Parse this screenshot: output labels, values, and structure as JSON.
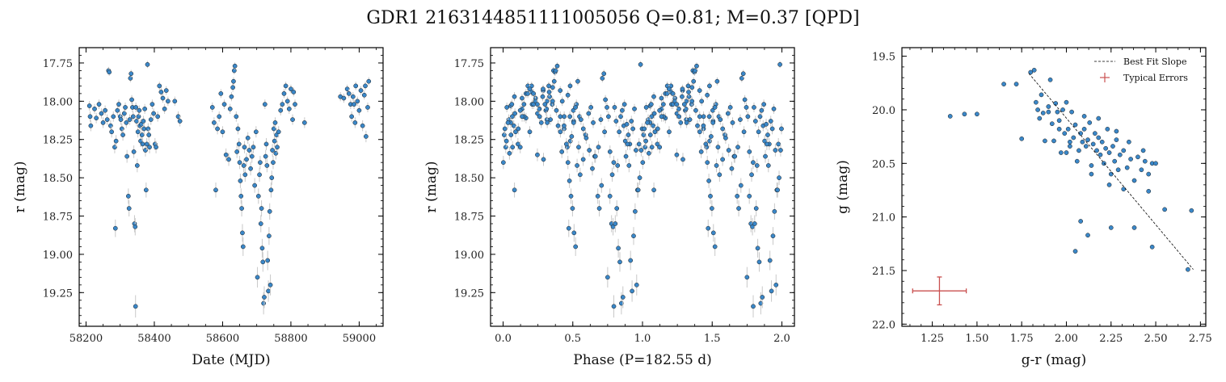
{
  "page": {
    "title": "GDR1 2163144851111005056  Q=0.81; M=0.37 [QPD]"
  },
  "colors": {
    "point_fill": "#3a87c8",
    "point_edge": "#1a1a1a",
    "error_bar": "#c8c8c8",
    "typical_error": "#c9504f",
    "fit_line": "#000000"
  },
  "chart_data": [
    {
      "type": "scatter",
      "xlabel": "Date (MJD)",
      "ylabel": "r (mag)",
      "xlim": [
        58180,
        59070
      ],
      "ylim": [
        19.47,
        17.65
      ],
      "y_inverted": true,
      "xticks": [
        58200,
        58400,
        58600,
        58800,
        59000
      ],
      "xtick_labels": [
        "58200",
        "58400",
        "58600",
        "58800",
        "59000"
      ],
      "yticks": [
        17.75,
        18.0,
        18.25,
        18.5,
        18.75,
        19.0,
        19.25
      ],
      "ytick_labels": [
        "17.75",
        "18.00",
        "18.25",
        "18.50",
        "18.75",
        "19.00",
        "19.25"
      ],
      "points": [
        [
          58210,
          18.03
        ],
        [
          58212,
          18.1
        ],
        [
          58214,
          18.16
        ],
        [
          58225,
          18.05
        ],
        [
          58230,
          18.11
        ],
        [
          58238,
          18.02
        ],
        [
          58245,
          18.08
        ],
        [
          58250,
          18.14
        ],
        [
          58256,
          18.06
        ],
        [
          58262,
          18.12
        ],
        [
          58266,
          17.8
        ],
        [
          58268,
          17.81
        ],
        [
          58272,
          18.16
        ],
        [
          58275,
          18.2
        ],
        [
          58280,
          18.1
        ],
        [
          58284,
          18.3
        ],
        [
          58286,
          18.83
        ],
        [
          58288,
          18.26
        ],
        [
          58292,
          18.06
        ],
        [
          58296,
          18.02
        ],
        [
          58300,
          18.1
        ],
        [
          58302,
          18.12
        ],
        [
          58305,
          18.18
        ],
        [
          58308,
          18.22
        ],
        [
          58312,
          18.08
        ],
        [
          58315,
          18.04
        ],
        [
          58318,
          18.14
        ],
        [
          58320,
          18.36
        ],
        [
          58324,
          18.62
        ],
        [
          58326,
          18.7
        ],
        [
          58328,
          18.12
        ],
        [
          58330,
          17.85
        ],
        [
          58332,
          17.82
        ],
        [
          58334,
          17.99
        ],
        [
          58336,
          18.04
        ],
        [
          58338,
          18.1
        ],
        [
          58340,
          18.33
        ],
        [
          58342,
          18.8
        ],
        [
          58344,
          18.82
        ],
        [
          58345,
          19.34
        ],
        [
          58346,
          18.04
        ],
        [
          58348,
          18.13
        ],
        [
          58350,
          18.42
        ],
        [
          58352,
          18.2
        ],
        [
          58354,
          18.1
        ],
        [
          58356,
          18.06
        ],
        [
          58358,
          18.16
        ],
        [
          58360,
          18.26
        ],
        [
          58362,
          18.15
        ],
        [
          58364,
          18.22
        ],
        [
          58366,
          18.28
        ],
        [
          58368,
          18.13
        ],
        [
          58370,
          18.18
        ],
        [
          58372,
          18.05
        ],
        [
          58374,
          18.32
        ],
        [
          58376,
          18.58
        ],
        [
          58378,
          18.28
        ],
        [
          58380,
          17.76
        ],
        [
          58382,
          18.18
        ],
        [
          58384,
          18.22
        ],
        [
          58386,
          18.3
        ],
        [
          58390,
          18.12
        ],
        [
          58394,
          18.02
        ],
        [
          58398,
          18.08
        ],
        [
          58402,
          18.28
        ],
        [
          58405,
          18.3
        ],
        [
          58410,
          18.1
        ],
        [
          58415,
          17.9
        ],
        [
          58420,
          17.94
        ],
        [
          58425,
          17.98
        ],
        [
          58430,
          18.05
        ],
        [
          58435,
          17.93
        ],
        [
          58440,
          18.0
        ],
        [
          58460,
          18.0
        ],
        [
          58470,
          18.1
        ],
        [
          58475,
          18.13
        ],
        [
          58570,
          18.04
        ],
        [
          58575,
          18.14
        ],
        [
          58580,
          18.58
        ],
        [
          58585,
          18.18
        ],
        [
          58590,
          18.1
        ],
        [
          58595,
          17.95
        ],
        [
          58600,
          18.2
        ],
        [
          58605,
          18.02
        ],
        [
          58610,
          18.35
        ],
        [
          58618,
          18.38
        ],
        [
          58622,
          18.05
        ],
        [
          58626,
          17.97
        ],
        [
          58630,
          17.91
        ],
        [
          58632,
          17.87
        ],
        [
          58634,
          17.8
        ],
        [
          58636,
          17.77
        ],
        [
          58640,
          18.1
        ],
        [
          58642,
          18.33
        ],
        [
          58645,
          18.18
        ],
        [
          58648,
          18.28
        ],
        [
          58650,
          18.4
        ],
        [
          58652,
          18.52
        ],
        [
          58654,
          18.62
        ],
        [
          58656,
          18.7
        ],
        [
          58658,
          18.86
        ],
        [
          58660,
          18.95
        ],
        [
          58662,
          18.42
        ],
        [
          58664,
          18.3
        ],
        [
          58666,
          18.48
        ],
        [
          58670,
          18.38
        ],
        [
          58674,
          18.24
        ],
        [
          58678,
          18.32
        ],
        [
          58682,
          18.44
        ],
        [
          58686,
          18.36
        ],
        [
          58690,
          18.3
        ],
        [
          58694,
          18.55
        ],
        [
          58698,
          18.2
        ],
        [
          58702,
          19.15
        ],
        [
          58705,
          18.62
        ],
        [
          58708,
          18.48
        ],
        [
          58710,
          18.4
        ],
        [
          58712,
          18.8
        ],
        [
          58714,
          18.7
        ],
        [
          58716,
          18.96
        ],
        [
          58718,
          19.05
        ],
        [
          58720,
          19.32
        ],
        [
          58722,
          19.28
        ],
        [
          58724,
          18.02
        ],
        [
          58726,
          18.36
        ],
        [
          58728,
          18.28
        ],
        [
          58730,
          18.42
        ],
        [
          58732,
          19.04
        ],
        [
          58734,
          19.24
        ],
        [
          58736,
          18.88
        ],
        [
          58738,
          18.72
        ],
        [
          58740,
          19.2
        ],
        [
          58742,
          18.58
        ],
        [
          58744,
          18.5
        ],
        [
          58746,
          18.32
        ],
        [
          58748,
          18.4
        ],
        [
          58750,
          18.18
        ],
        [
          58752,
          18.26
        ],
        [
          58754,
          18.14
        ],
        [
          58756,
          18.34
        ],
        [
          58758,
          18.22
        ],
        [
          58760,
          18.3
        ],
        [
          58764,
          18.2
        ],
        [
          58770,
          18.06
        ],
        [
          58775,
          18.02
        ],
        [
          58780,
          17.95
        ],
        [
          58785,
          17.9
        ],
        [
          58790,
          18.0
        ],
        [
          58795,
          18.05
        ],
        [
          58800,
          17.92
        ],
        [
          58805,
          18.12
        ],
        [
          58808,
          17.94
        ],
        [
          58812,
          18.02
        ],
        [
          58840,
          18.14
        ],
        [
          58945,
          17.97
        ],
        [
          58955,
          17.98
        ],
        [
          58965,
          17.92
        ],
        [
          58970,
          17.95
        ],
        [
          58975,
          18.02
        ],
        [
          58978,
          18.1
        ],
        [
          58982,
          17.97
        ],
        [
          58985,
          18.02
        ],
        [
          58988,
          18.14
        ],
        [
          58990,
          17.9
        ],
        [
          58995,
          18.0
        ],
        [
          59000,
          18.06
        ],
        [
          59005,
          17.93
        ],
        [
          59010,
          18.16
        ],
        [
          59015,
          17.96
        ],
        [
          59018,
          17.9
        ],
        [
          59020,
          18.23
        ],
        [
          59025,
          18.04
        ],
        [
          59028,
          17.87
        ]
      ]
    },
    {
      "type": "scatter",
      "xlabel": "Phase (P=182.55 d)",
      "ylabel": "r (mag)",
      "xlim": [
        -0.09,
        2.09
      ],
      "ylim": [
        19.47,
        17.65
      ],
      "y_inverted": true,
      "xticks": [
        0.0,
        0.5,
        1.0,
        1.5,
        2.0
      ],
      "xtick_labels": [
        "0.0",
        "0.5",
        "1.0",
        "1.5",
        "2.0"
      ],
      "yticks": [
        17.75,
        18.0,
        18.25,
        18.5,
        18.75,
        19.0,
        19.25
      ],
      "ytick_labels": [
        "17.75",
        "18.00",
        "18.25",
        "18.50",
        "18.75",
        "19.00",
        "19.25"
      ],
      "period_days": 182.55,
      "phase_reference": 58200,
      "derived_from_panel": 0
    },
    {
      "type": "scatter",
      "xlabel": "g-r (mag)",
      "ylabel": "g (mag)",
      "xlim": [
        1.08,
        2.78
      ],
      "ylim": [
        22.02,
        19.42
      ],
      "y_inverted": true,
      "xticks": [
        1.25,
        1.5,
        1.75,
        2.0,
        2.25,
        2.5,
        2.75
      ],
      "xtick_labels": [
        "1.25",
        "1.50",
        "1.75",
        "2.00",
        "2.25",
        "2.50",
        "2.75"
      ],
      "yticks": [
        19.5,
        20.0,
        20.5,
        21.0,
        21.5,
        22.0
      ],
      "ytick_labels": [
        "19.5",
        "20.0",
        "20.5",
        "21.0",
        "21.5",
        "22.0"
      ],
      "legend": {
        "placement": "top-right",
        "entries": [
          "Best Fit Slope",
          "Typical Errors"
        ]
      },
      "fit_line": {
        "x": [
          1.79,
          2.71
        ],
        "y": [
          19.66,
          21.49
        ]
      },
      "typical_error": {
        "x": 1.29,
        "y": 21.69,
        "xerr": 0.15,
        "yerr": 0.13
      },
      "points": [
        [
          1.35,
          20.06
        ],
        [
          1.43,
          20.04
        ],
        [
          1.5,
          20.04
        ],
        [
          1.65,
          19.76
        ],
        [
          1.72,
          19.76
        ],
        [
          1.75,
          20.27
        ],
        [
          1.8,
          19.65
        ],
        [
          1.82,
          19.63
        ],
        [
          1.83,
          19.93
        ],
        [
          1.84,
          20.0
        ],
        [
          1.85,
          20.08
        ],
        [
          1.86,
          19.86
        ],
        [
          1.87,
          20.03
        ],
        [
          1.88,
          20.29
        ],
        [
          1.9,
          19.97
        ],
        [
          1.91,
          19.72
        ],
        [
          1.92,
          20.13
        ],
        [
          1.93,
          20.29
        ],
        [
          1.94,
          19.94
        ],
        [
          1.95,
          20.02
        ],
        [
          1.96,
          20.1
        ],
        [
          1.97,
          20.4
        ],
        [
          1.98,
          20.0
        ],
        [
          1.99,
          20.22
        ],
        [
          2.0,
          19.93
        ],
        [
          2.01,
          20.18
        ],
        [
          2.02,
          20.34
        ],
        [
          2.03,
          20.02
        ],
        [
          2.04,
          20.26
        ],
        [
          2.05,
          20.14
        ],
        [
          2.06,
          20.48
        ],
        [
          2.07,
          20.38
        ],
        [
          2.08,
          20.22
        ],
        [
          2.09,
          20.3
        ],
        [
          2.1,
          20.06
        ],
        [
          2.11,
          20.34
        ],
        [
          2.12,
          20.28
        ],
        [
          2.13,
          20.12
        ],
        [
          2.14,
          20.52
        ],
        [
          2.15,
          20.32
        ],
        [
          2.16,
          20.22
        ],
        [
          2.17,
          20.38
        ],
        [
          2.18,
          20.26
        ],
        [
          2.19,
          20.42
        ],
        [
          2.2,
          20.3
        ],
        [
          2.21,
          20.5
        ],
        [
          2.22,
          20.36
        ],
        [
          2.23,
          20.18
        ],
        [
          2.24,
          20.4
        ],
        [
          2.25,
          20.6
        ],
        [
          2.26,
          20.34
        ],
        [
          2.27,
          20.48
        ],
        [
          2.28,
          20.28
        ],
        [
          2.29,
          20.56
        ],
        [
          2.3,
          20.42
        ],
        [
          2.32,
          20.38
        ],
        [
          2.34,
          20.54
        ],
        [
          2.36,
          20.46
        ],
        [
          2.38,
          20.66
        ],
        [
          2.4,
          20.44
        ],
        [
          2.42,
          20.56
        ],
        [
          2.44,
          20.48
        ],
        [
          2.46,
          20.6
        ],
        [
          2.48,
          20.5
        ],
        [
          2.5,
          20.5
        ],
        [
          2.05,
          21.32
        ],
        [
          2.08,
          21.04
        ],
        [
          2.12,
          21.17
        ],
        [
          2.25,
          21.1
        ],
        [
          2.38,
          21.1
        ],
        [
          2.48,
          21.28
        ],
        [
          2.55,
          20.93
        ],
        [
          2.68,
          21.49
        ],
        [
          2.7,
          20.94
        ],
        [
          2.02,
          20.3
        ],
        [
          2.1,
          20.18
        ],
        [
          2.18,
          20.08
        ],
        [
          2.28,
          20.2
        ],
        [
          2.35,
          20.3
        ],
        [
          2.43,
          20.38
        ],
        [
          1.96,
          20.18
        ],
        [
          2.0,
          20.4
        ],
        [
          2.14,
          20.6
        ],
        [
          2.24,
          20.7
        ],
        [
          2.32,
          20.74
        ],
        [
          2.46,
          20.76
        ],
        [
          1.9,
          20.02
        ]
      ]
    }
  ]
}
